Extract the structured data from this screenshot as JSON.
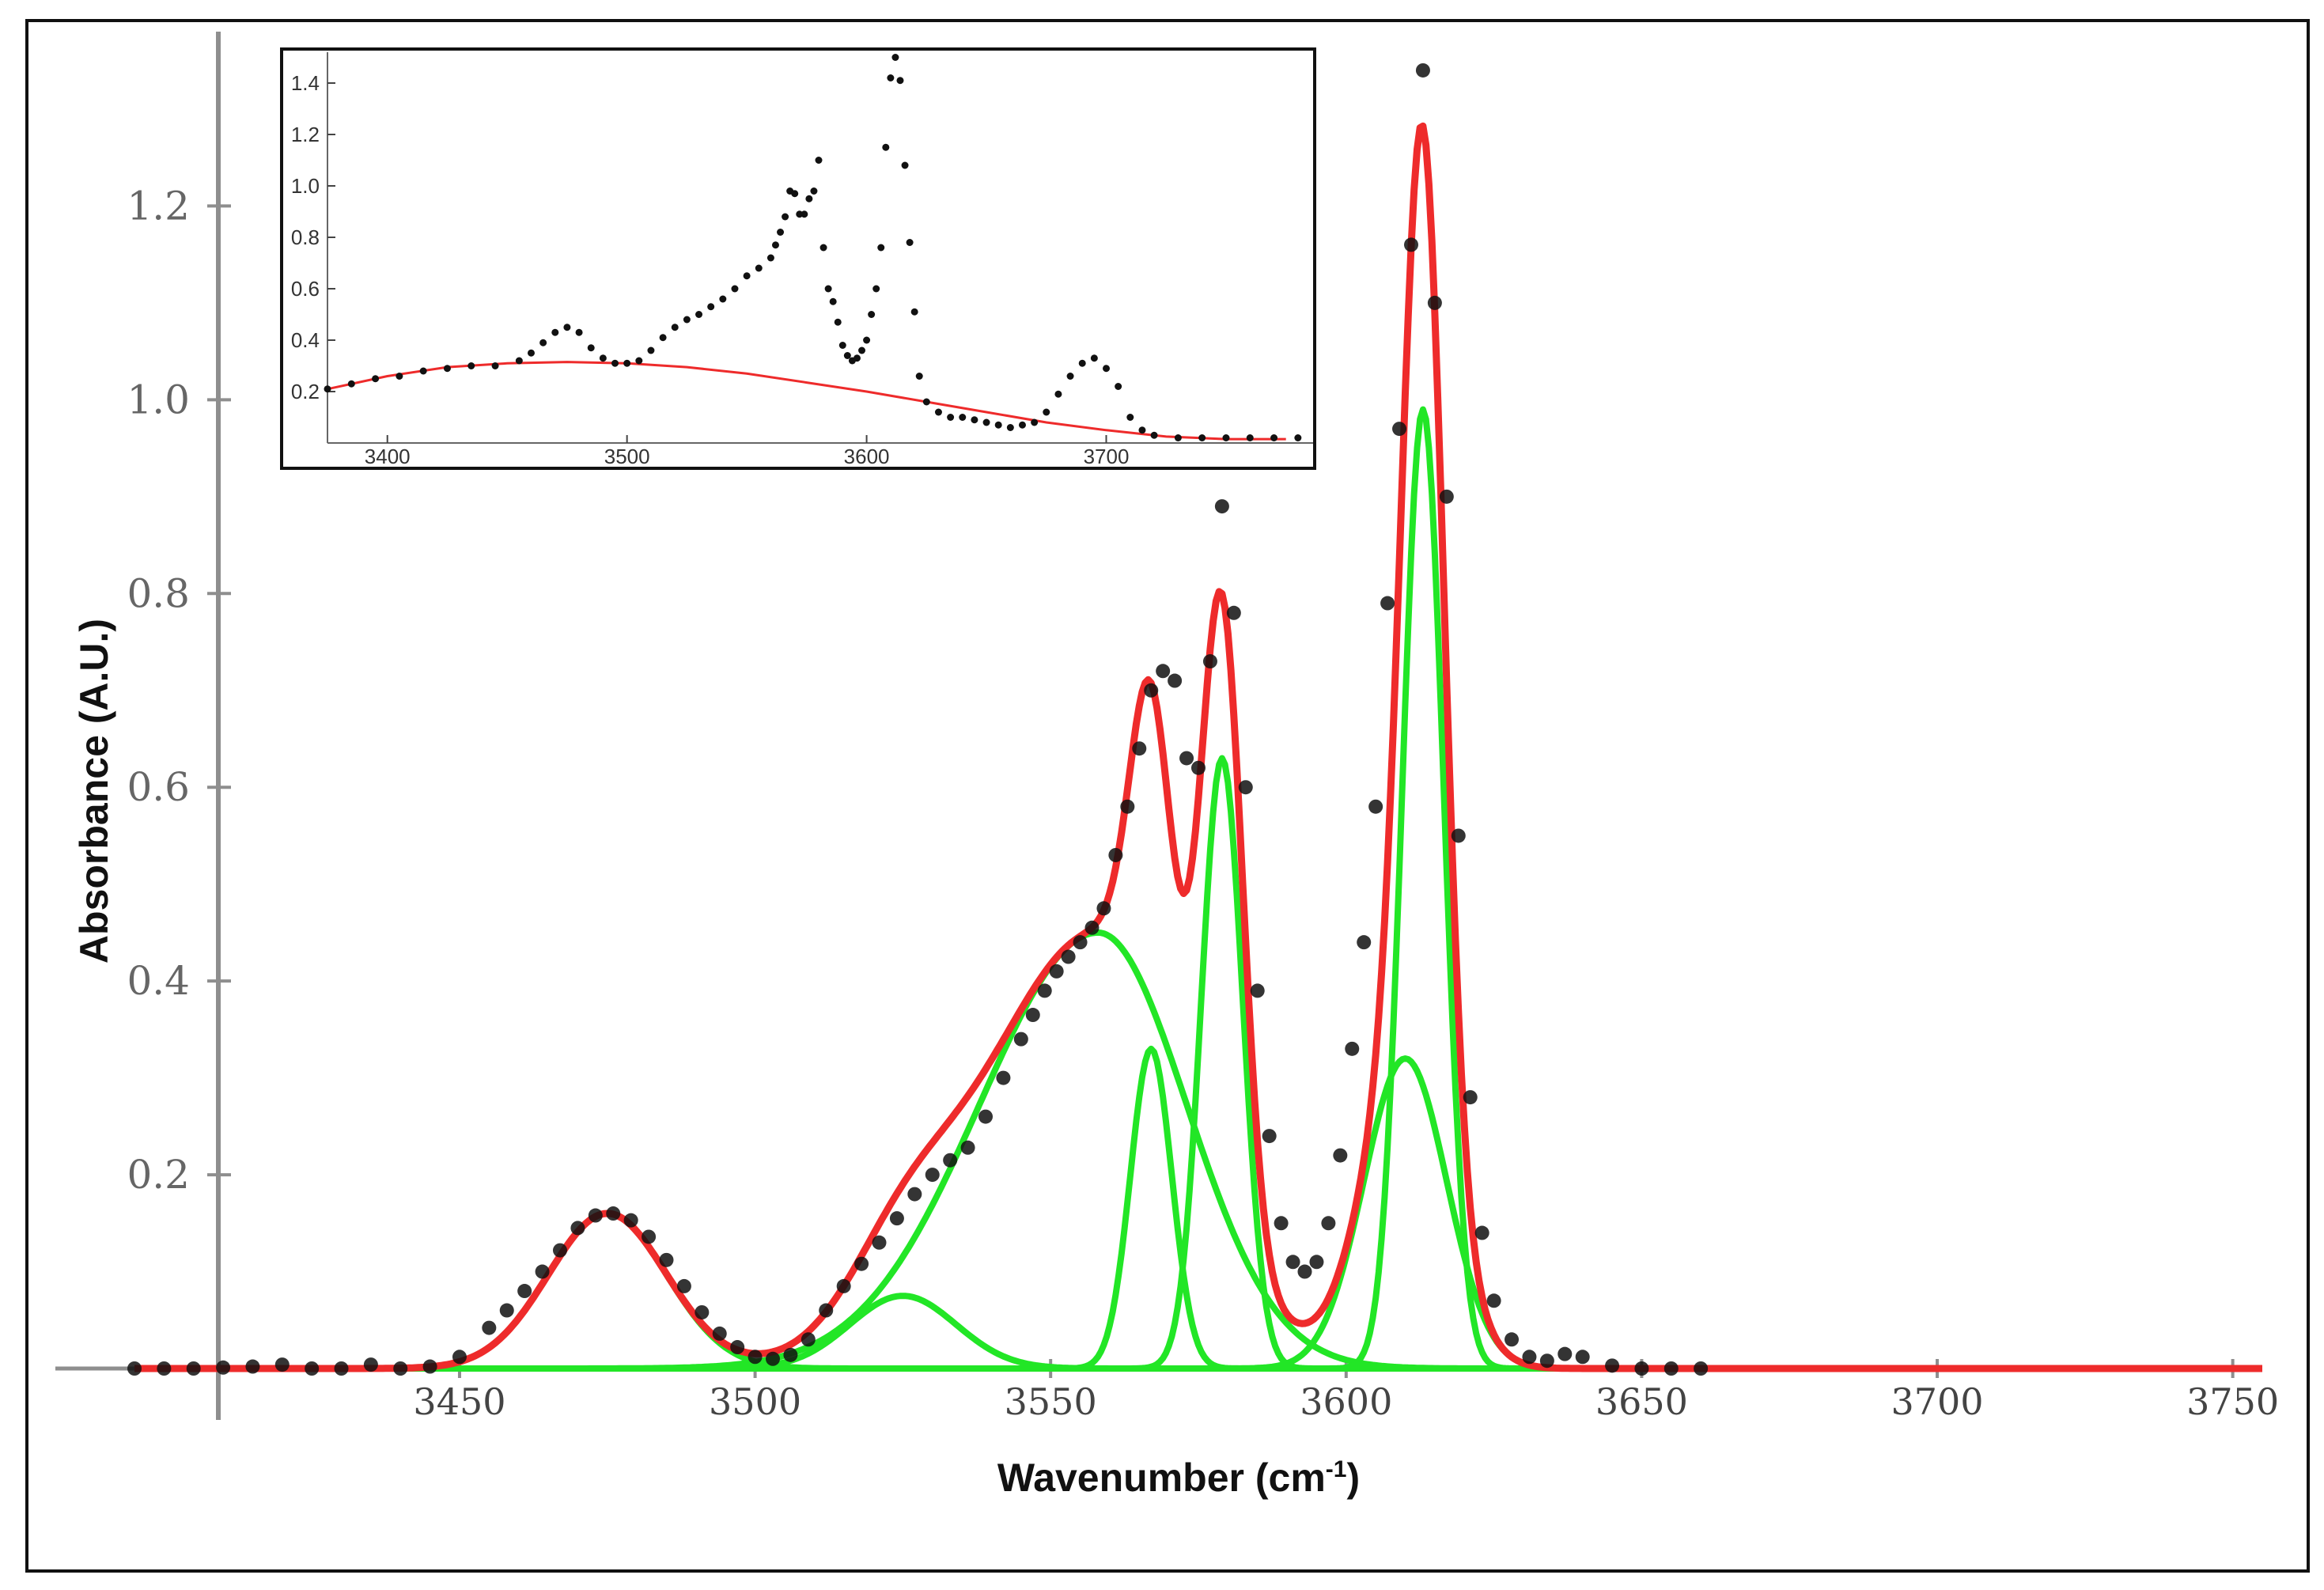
{
  "chart_data": {
    "type": "line",
    "xlabel": "Wavenumber (cm",
    "xlabel_sup": "-1",
    "xlabel_close": ")",
    "ylabel": "Absorbance (A.U.)",
    "xlim": [
      3395,
      3755
    ],
    "ylim": [
      0,
      1.38
    ],
    "x_ticks": [
      3450,
      3500,
      3550,
      3600,
      3650,
      3700,
      3750
    ],
    "x_tick_labels": [
      "3450",
      "3500",
      "3550",
      "3600",
      "3650",
      "3700",
      "3750"
    ],
    "y_ticks": [
      0.2,
      0.4,
      0.6,
      0.8,
      1.0,
      1.2
    ],
    "y_tick_labels": [
      "0.2",
      "0.4",
      "0.6",
      "0.8",
      "1.0",
      "1.2"
    ],
    "grid": false,
    "colors": {
      "data": "#111111",
      "fit": "#ee2b2b",
      "components": "#22e626",
      "baseline": "#8a8a8a"
    },
    "components": [
      {
        "center": 3475,
        "amplitude": 0.16,
        "width": 10
      },
      {
        "center": 3525,
        "amplitude": 0.075,
        "width": 9
      },
      {
        "center": 3558,
        "amplitude": 0.45,
        "width_left": 20,
        "width_right": 15
      },
      {
        "center": 3567,
        "amplitude": 0.33,
        "width": 3.5
      },
      {
        "center": 3579,
        "amplitude": 0.63,
        "width": 3.5
      },
      {
        "center": 3610,
        "amplitude": 0.32,
        "width": 7
      },
      {
        "center": 3613,
        "amplitude": 0.99,
        "width": 3.5
      }
    ],
    "data_points": {
      "x": [
        3395,
        3400,
        3405,
        3410,
        3415,
        3420,
        3425,
        3430,
        3435,
        3440,
        3445,
        3450,
        3455,
        3458,
        3461,
        3464,
        3467,
        3470,
        3473,
        3476,
        3479,
        3482,
        3485,
        3488,
        3491,
        3494,
        3497,
        3500,
        3503,
        3506,
        3509,
        3512,
        3515,
        3518,
        3521,
        3524,
        3527,
        3530,
        3533,
        3536,
        3539,
        3542,
        3545,
        3547,
        3549,
        3551,
        3553,
        3555,
        3557,
        3559,
        3561,
        3563,
        3565,
        3567,
        3569,
        3571,
        3573,
        3575,
        3577,
        3579,
        3581,
        3583,
        3585,
        3587,
        3589,
        3591,
        3593,
        3595,
        3597,
        3599,
        3601,
        3603,
        3605,
        3607,
        3609,
        3611,
        3613,
        3615,
        3617,
        3619,
        3621,
        3623,
        3625,
        3628,
        3631,
        3634,
        3637,
        3640,
        3645,
        3650,
        3655,
        3660
      ],
      "y": [
        0.0,
        0.0,
        0.0,
        0.001,
        0.002,
        0.004,
        0.0,
        0.0,
        0.004,
        0.0,
        0.002,
        0.012,
        0.042,
        0.06,
        0.08,
        0.1,
        0.122,
        0.145,
        0.158,
        0.16,
        0.153,
        0.136,
        0.112,
        0.085,
        0.058,
        0.036,
        0.022,
        0.012,
        0.01,
        0.014,
        0.03,
        0.06,
        0.085,
        0.108,
        0.13,
        0.155,
        0.18,
        0.2,
        0.215,
        0.228,
        0.26,
        0.3,
        0.34,
        0.365,
        0.39,
        0.41,
        0.425,
        0.44,
        0.455,
        0.475,
        0.53,
        0.58,
        0.64,
        0.7,
        0.72,
        0.71,
        0.63,
        0.62,
        0.73,
        0.89,
        0.78,
        0.6,
        0.39,
        0.24,
        0.15,
        0.11,
        0.1,
        0.11,
        0.15,
        0.22,
        0.33,
        0.44,
        0.58,
        0.79,
        0.97,
        1.16,
        1.34,
        1.1,
        0.9,
        0.55,
        0.28,
        0.14,
        0.07,
        0.03,
        0.012,
        0.008,
        0.015,
        0.012,
        0.003,
        0.0,
        0.0,
        0.0
      ]
    },
    "inset": {
      "xlim": [
        3375,
        3785
      ],
      "ylim": [
        0.0,
        1.52
      ],
      "x_ticks": [
        3400,
        3500,
        3600,
        3700
      ],
      "x_tick_labels": [
        "3400",
        "3500",
        "3600",
        "3700"
      ],
      "y_ticks": [
        0.2,
        0.4,
        0.6,
        0.8,
        1.0,
        1.2,
        1.4
      ],
      "y_tick_labels": [
        "0.2",
        "0.4",
        "0.6",
        "0.8",
        "1.0",
        "1.2",
        "1.4"
      ],
      "data_points": {
        "x": [
          3375,
          3385,
          3395,
          3405,
          3415,
          3425,
          3435,
          3445,
          3455,
          3460,
          3465,
          3470,
          3475,
          3480,
          3485,
          3490,
          3495,
          3500,
          3505,
          3510,
          3515,
          3520,
          3525,
          3530,
          3535,
          3540,
          3545,
          3550,
          3555,
          3560,
          3562,
          3564,
          3566,
          3568,
          3570,
          3572,
          3574,
          3576,
          3578,
          3580,
          3582,
          3584,
          3586,
          3588,
          3590,
          3592,
          3594,
          3596,
          3598,
          3600,
          3602,
          3604,
          3606,
          3608,
          3610,
          3612,
          3614,
          3616,
          3618,
          3620,
          3622,
          3625,
          3630,
          3635,
          3640,
          3645,
          3650,
          3655,
          3660,
          3665,
          3670,
          3675,
          3680,
          3685,
          3690,
          3695,
          3700,
          3705,
          3710,
          3715,
          3720,
          3730,
          3740,
          3750,
          3760,
          3770,
          3780
        ],
        "y": [
          0.21,
          0.23,
          0.25,
          0.26,
          0.28,
          0.29,
          0.3,
          0.3,
          0.32,
          0.35,
          0.39,
          0.43,
          0.45,
          0.43,
          0.37,
          0.33,
          0.31,
          0.31,
          0.32,
          0.36,
          0.41,
          0.45,
          0.48,
          0.5,
          0.53,
          0.56,
          0.6,
          0.65,
          0.68,
          0.72,
          0.77,
          0.82,
          0.88,
          0.98,
          0.97,
          0.89,
          0.89,
          0.95,
          0.98,
          1.1,
          0.76,
          0.6,
          0.55,
          0.47,
          0.38,
          0.34,
          0.32,
          0.33,
          0.36,
          0.4,
          0.5,
          0.6,
          0.76,
          1.15,
          1.42,
          1.5,
          1.41,
          1.08,
          0.78,
          0.51,
          0.26,
          0.16,
          0.12,
          0.1,
          0.1,
          0.09,
          0.08,
          0.07,
          0.06,
          0.07,
          0.08,
          0.12,
          0.19,
          0.26,
          0.31,
          0.33,
          0.29,
          0.22,
          0.1,
          0.05,
          0.03,
          0.02,
          0.02,
          0.02,
          0.02,
          0.02,
          0.02
        ]
      },
      "baseline_fit": {
        "x": [
          3375,
          3400,
          3425,
          3450,
          3475,
          3500,
          3525,
          3550,
          3575,
          3600,
          3625,
          3650,
          3675,
          3700,
          3725,
          3750,
          3775
        ],
        "y": [
          0.21,
          0.26,
          0.295,
          0.31,
          0.315,
          0.31,
          0.295,
          0.27,
          0.235,
          0.2,
          0.16,
          0.12,
          0.08,
          0.05,
          0.025,
          0.015,
          0.015
        ]
      }
    }
  }
}
